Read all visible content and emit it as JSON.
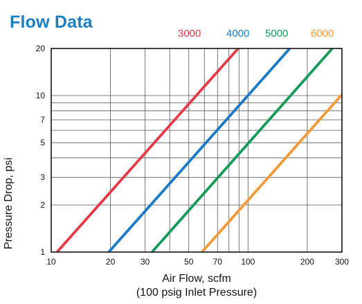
{
  "title": "Flow Data",
  "chart_data": {
    "type": "line",
    "xscale": "log",
    "yscale": "log",
    "xlim": [
      10,
      300
    ],
    "ylim": [
      1,
      20
    ],
    "xlabel": "Air Flow, scfm",
    "xlabel_sub": "(100 psig Inlet Pressure)",
    "ylabel": "Pressure Drop, psi",
    "x_tick_labels": [
      10,
      20,
      30,
      50,
      70,
      100,
      200,
      300
    ],
    "y_tick_labels": [
      1,
      2,
      3,
      5,
      7,
      10,
      20
    ],
    "x_gridlines": [
      10,
      20,
      30,
      40,
      50,
      60,
      70,
      80,
      90,
      100,
      200,
      300
    ],
    "y_gridlines": [
      1,
      2,
      3,
      4,
      5,
      6,
      7,
      8,
      9,
      10,
      20
    ],
    "grid": true,
    "legend_placement": "top",
    "series": [
      {
        "name": "3000",
        "color": "#e63a46",
        "x": [
          10.7,
          89.1
        ],
        "y": [
          1,
          20
        ]
      },
      {
        "name": "4000",
        "color": "#1b7ac6",
        "x": [
          19.6,
          163
        ],
        "y": [
          1,
          20
        ]
      },
      {
        "name": "5000",
        "color": "#159a5a",
        "x": [
          32.5,
          268
        ],
        "y": [
          1,
          20
        ]
      },
      {
        "name": "6000",
        "color": "#f29a3a",
        "x": [
          58.3,
          485
        ],
        "y": [
          1,
          20
        ]
      }
    ]
  }
}
